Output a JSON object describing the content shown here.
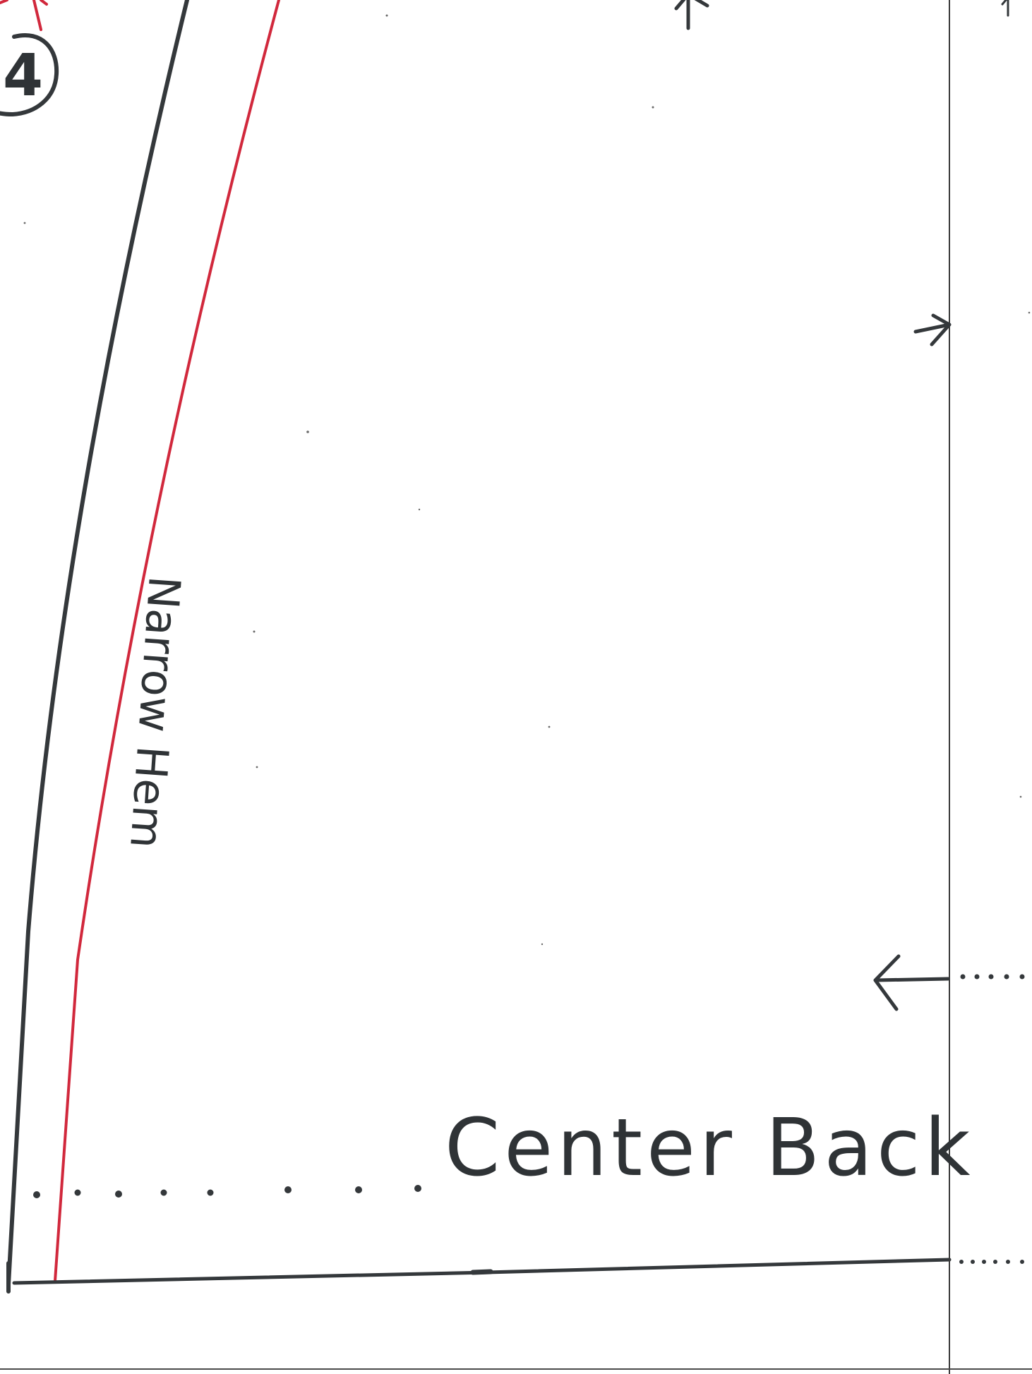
{
  "pattern": {
    "piece_number": "4",
    "hem_label": "Narrow Hem",
    "fold_label": "Center Back",
    "colors": {
      "paper": "#ffffff",
      "ink": "#34383b",
      "seam_line": "#d1283c"
    },
    "icons": [
      "arrow-right-icon",
      "arrow-left-icon",
      "arrow-up-icon"
    ]
  }
}
